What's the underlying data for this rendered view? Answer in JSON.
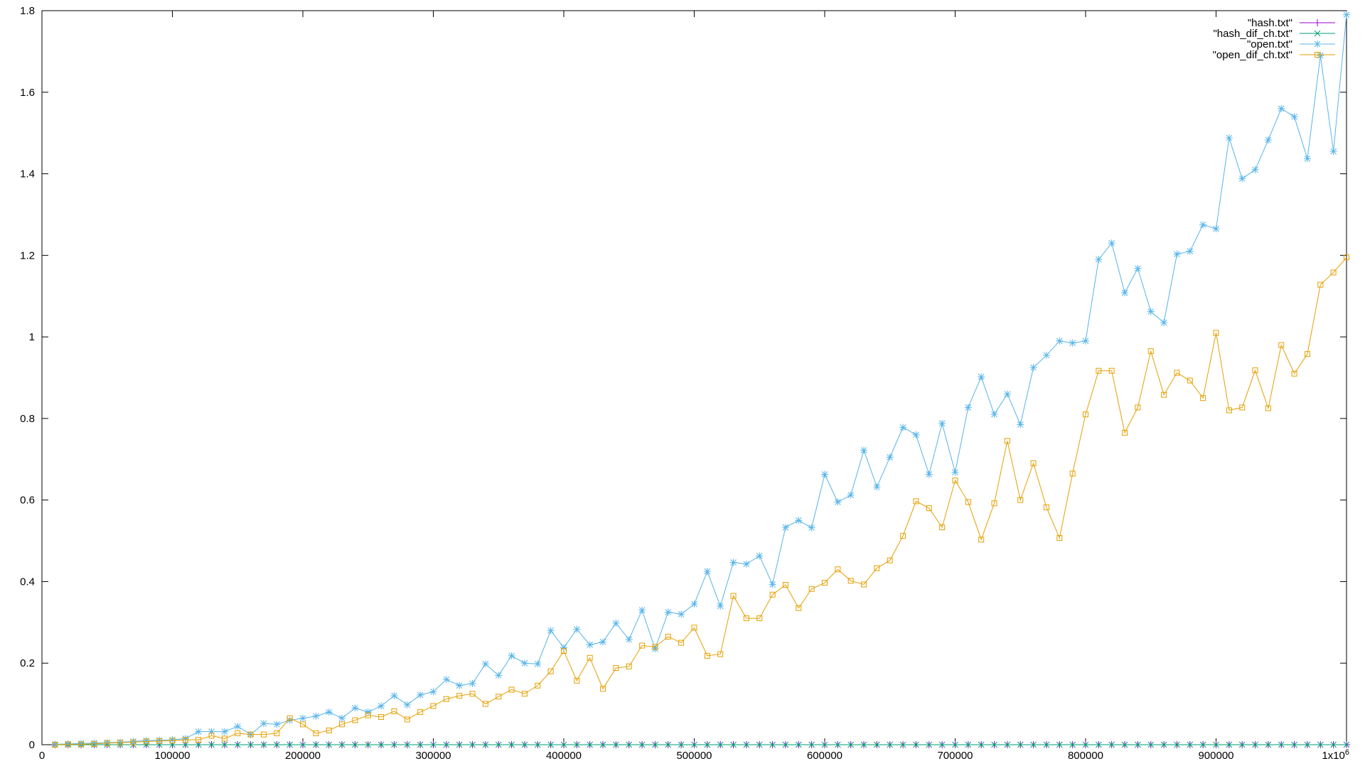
{
  "chart_data": {
    "type": "line",
    "title": "",
    "xlabel": "",
    "ylabel": "",
    "xlim": [
      0,
      1000000
    ],
    "ylim": [
      0,
      1.8
    ],
    "grid": false,
    "legend_position": "top-right",
    "x_ticks": [
      {
        "value": 0,
        "label": "0"
      },
      {
        "value": 100000,
        "label": "100000"
      },
      {
        "value": 200000,
        "label": "200000"
      },
      {
        "value": 300000,
        "label": "300000"
      },
      {
        "value": 400000,
        "label": "400000"
      },
      {
        "value": 500000,
        "label": "500000"
      },
      {
        "value": 600000,
        "label": "600000"
      },
      {
        "value": 700000,
        "label": "700000"
      },
      {
        "value": 800000,
        "label": "800000"
      },
      {
        "value": 900000,
        "label": "900000"
      },
      {
        "value": 1000000,
        "label": "1x10",
        "sup": "6"
      }
    ],
    "y_ticks": [
      {
        "value": 0,
        "label": "0"
      },
      {
        "value": 0.2,
        "label": "0.2"
      },
      {
        "value": 0.4,
        "label": "0.4"
      },
      {
        "value": 0.6,
        "label": "0.6"
      },
      {
        "value": 0.8,
        "label": "0.8"
      },
      {
        "value": 1.0,
        "label": "1"
      },
      {
        "value": 1.2,
        "label": "1.2"
      },
      {
        "value": 1.4,
        "label": "1.4"
      },
      {
        "value": 1.6,
        "label": "1.6"
      },
      {
        "value": 1.8,
        "label": "1.8"
      }
    ],
    "x": [
      10000,
      20000,
      30000,
      40000,
      50000,
      60000,
      70000,
      80000,
      90000,
      100000,
      110000,
      120000,
      130000,
      140000,
      150000,
      160000,
      170000,
      180000,
      190000,
      200000,
      210000,
      220000,
      230000,
      240000,
      250000,
      260000,
      270000,
      280000,
      290000,
      300000,
      310000,
      320000,
      330000,
      340000,
      350000,
      360000,
      370000,
      380000,
      390000,
      400000,
      410000,
      420000,
      430000,
      440000,
      450000,
      460000,
      470000,
      480000,
      490000,
      500000,
      510000,
      520000,
      530000,
      540000,
      550000,
      560000,
      570000,
      580000,
      590000,
      600000,
      610000,
      620000,
      630000,
      640000,
      650000,
      660000,
      670000,
      680000,
      690000,
      700000,
      710000,
      720000,
      730000,
      740000,
      750000,
      760000,
      770000,
      780000,
      790000,
      800000,
      810000,
      820000,
      830000,
      840000,
      850000,
      860000,
      870000,
      880000,
      890000,
      900000,
      910000,
      920000,
      930000,
      940000,
      950000,
      960000,
      970000,
      980000,
      990000,
      1000000
    ],
    "series": [
      {
        "name": "\"hash.txt\"",
        "color": "#9400d3",
        "marker": "plus",
        "values": [
          0,
          0,
          0,
          0,
          0,
          0,
          0,
          0,
          0,
          0,
          0,
          0,
          0,
          0,
          0,
          0,
          0,
          0,
          0,
          0,
          0,
          0,
          0,
          0,
          0,
          0,
          0,
          0,
          0,
          0,
          0,
          0,
          0,
          0,
          0,
          0,
          0,
          0,
          0,
          0,
          0,
          0,
          0,
          0,
          0,
          0,
          0,
          0,
          0,
          0,
          0,
          0,
          0,
          0,
          0,
          0,
          0,
          0,
          0,
          0,
          0,
          0,
          0,
          0,
          0,
          0,
          0,
          0,
          0,
          0,
          0,
          0,
          0,
          0,
          0,
          0,
          0,
          0,
          0,
          0,
          0,
          0,
          0,
          0,
          0,
          0,
          0,
          0,
          0,
          0,
          0,
          0,
          0,
          0,
          0,
          0,
          0,
          0,
          0,
          0
        ]
      },
      {
        "name": "\"hash_dif_ch.txt\"",
        "color": "#009e73",
        "marker": "cross",
        "values": [
          0,
          0,
          0,
          0,
          0,
          0,
          0,
          0,
          0,
          0,
          0,
          0,
          0,
          0,
          0,
          0,
          0,
          0,
          0,
          0,
          0,
          0,
          0,
          0,
          0,
          0,
          0,
          0,
          0,
          0,
          0,
          0,
          0,
          0,
          0,
          0,
          0,
          0,
          0,
          0,
          0,
          0,
          0,
          0,
          0,
          0,
          0,
          0,
          0,
          0,
          0,
          0,
          0,
          0,
          0,
          0,
          0,
          0,
          0,
          0,
          0,
          0,
          0,
          0,
          0,
          0,
          0,
          0,
          0,
          0,
          0,
          0,
          0,
          0,
          0,
          0,
          0,
          0,
          0,
          0,
          0,
          0,
          0,
          0,
          0,
          0,
          0,
          0,
          0,
          0,
          0,
          0,
          0,
          0,
          0,
          0,
          0,
          0,
          0,
          0
        ]
      },
      {
        "name": "\"open.txt\"",
        "color": "#56b4e9",
        "marker": "star",
        "values": [
          0.001,
          0.002,
          0.003,
          0.004,
          0.005,
          0.006,
          0.008,
          0.01,
          0.011,
          0.012,
          0.015,
          0.032,
          0.032,
          0.032,
          0.045,
          0.025,
          0.052,
          0.05,
          0.06,
          0.065,
          0.07,
          0.08,
          0.065,
          0.09,
          0.08,
          0.095,
          0.12,
          0.098,
          0.122,
          0.13,
          0.16,
          0.145,
          0.15,
          0.198,
          0.17,
          0.218,
          0.2,
          0.198,
          0.28,
          0.238,
          0.283,
          0.245,
          0.252,
          0.298,
          0.258,
          0.33,
          0.235,
          0.325,
          0.32,
          0.345,
          0.425,
          0.34,
          0.447,
          0.443,
          0.463,
          0.393,
          0.533,
          0.55,
          0.532,
          0.663,
          0.595,
          0.612,
          0.722,
          0.632,
          0.705,
          0.778,
          0.76,
          0.663,
          0.788,
          0.668,
          0.827,
          0.902,
          0.81,
          0.86,
          0.785,
          0.925,
          0.955,
          0.99,
          0.985,
          0.99,
          1.19,
          1.23,
          1.108,
          1.168,
          1.062,
          1.035,
          1.203,
          1.21,
          1.275,
          1.265,
          1.488,
          1.388,
          1.41,
          1.483,
          1.56,
          1.54,
          1.437,
          1.69,
          1.455,
          1.79
        ]
      },
      {
        "name": "\"open_dif_ch.txt\"",
        "color": "#e69f00",
        "marker": "box",
        "values": [
          0.0,
          0.001,
          0.001,
          0.002,
          0.004,
          0.005,
          0.006,
          0.008,
          0.009,
          0.01,
          0.012,
          0.012,
          0.022,
          0.015,
          0.028,
          0.025,
          0.025,
          0.028,
          0.065,
          0.05,
          0.028,
          0.035,
          0.05,
          0.06,
          0.072,
          0.068,
          0.082,
          0.062,
          0.08,
          0.095,
          0.112,
          0.12,
          0.125,
          0.1,
          0.118,
          0.135,
          0.125,
          0.145,
          0.18,
          0.23,
          0.157,
          0.213,
          0.137,
          0.188,
          0.192,
          0.243,
          0.24,
          0.265,
          0.25,
          0.287,
          0.218,
          0.222,
          0.365,
          0.31,
          0.31,
          0.368,
          0.392,
          0.335,
          0.382,
          0.397,
          0.43,
          0.402,
          0.393,
          0.433,
          0.452,
          0.512,
          0.597,
          0.58,
          0.533,
          0.648,
          0.595,
          0.503,
          0.592,
          0.745,
          0.6,
          0.69,
          0.582,
          0.507,
          0.665,
          0.81,
          0.917,
          0.917,
          0.765,
          0.827,
          0.965,
          0.858,
          0.912,
          0.893,
          0.85,
          1.01,
          0.82,
          0.827,
          0.918,
          0.825,
          0.98,
          0.91,
          0.958,
          1.128,
          1.158,
          1.195
        ]
      }
    ]
  }
}
